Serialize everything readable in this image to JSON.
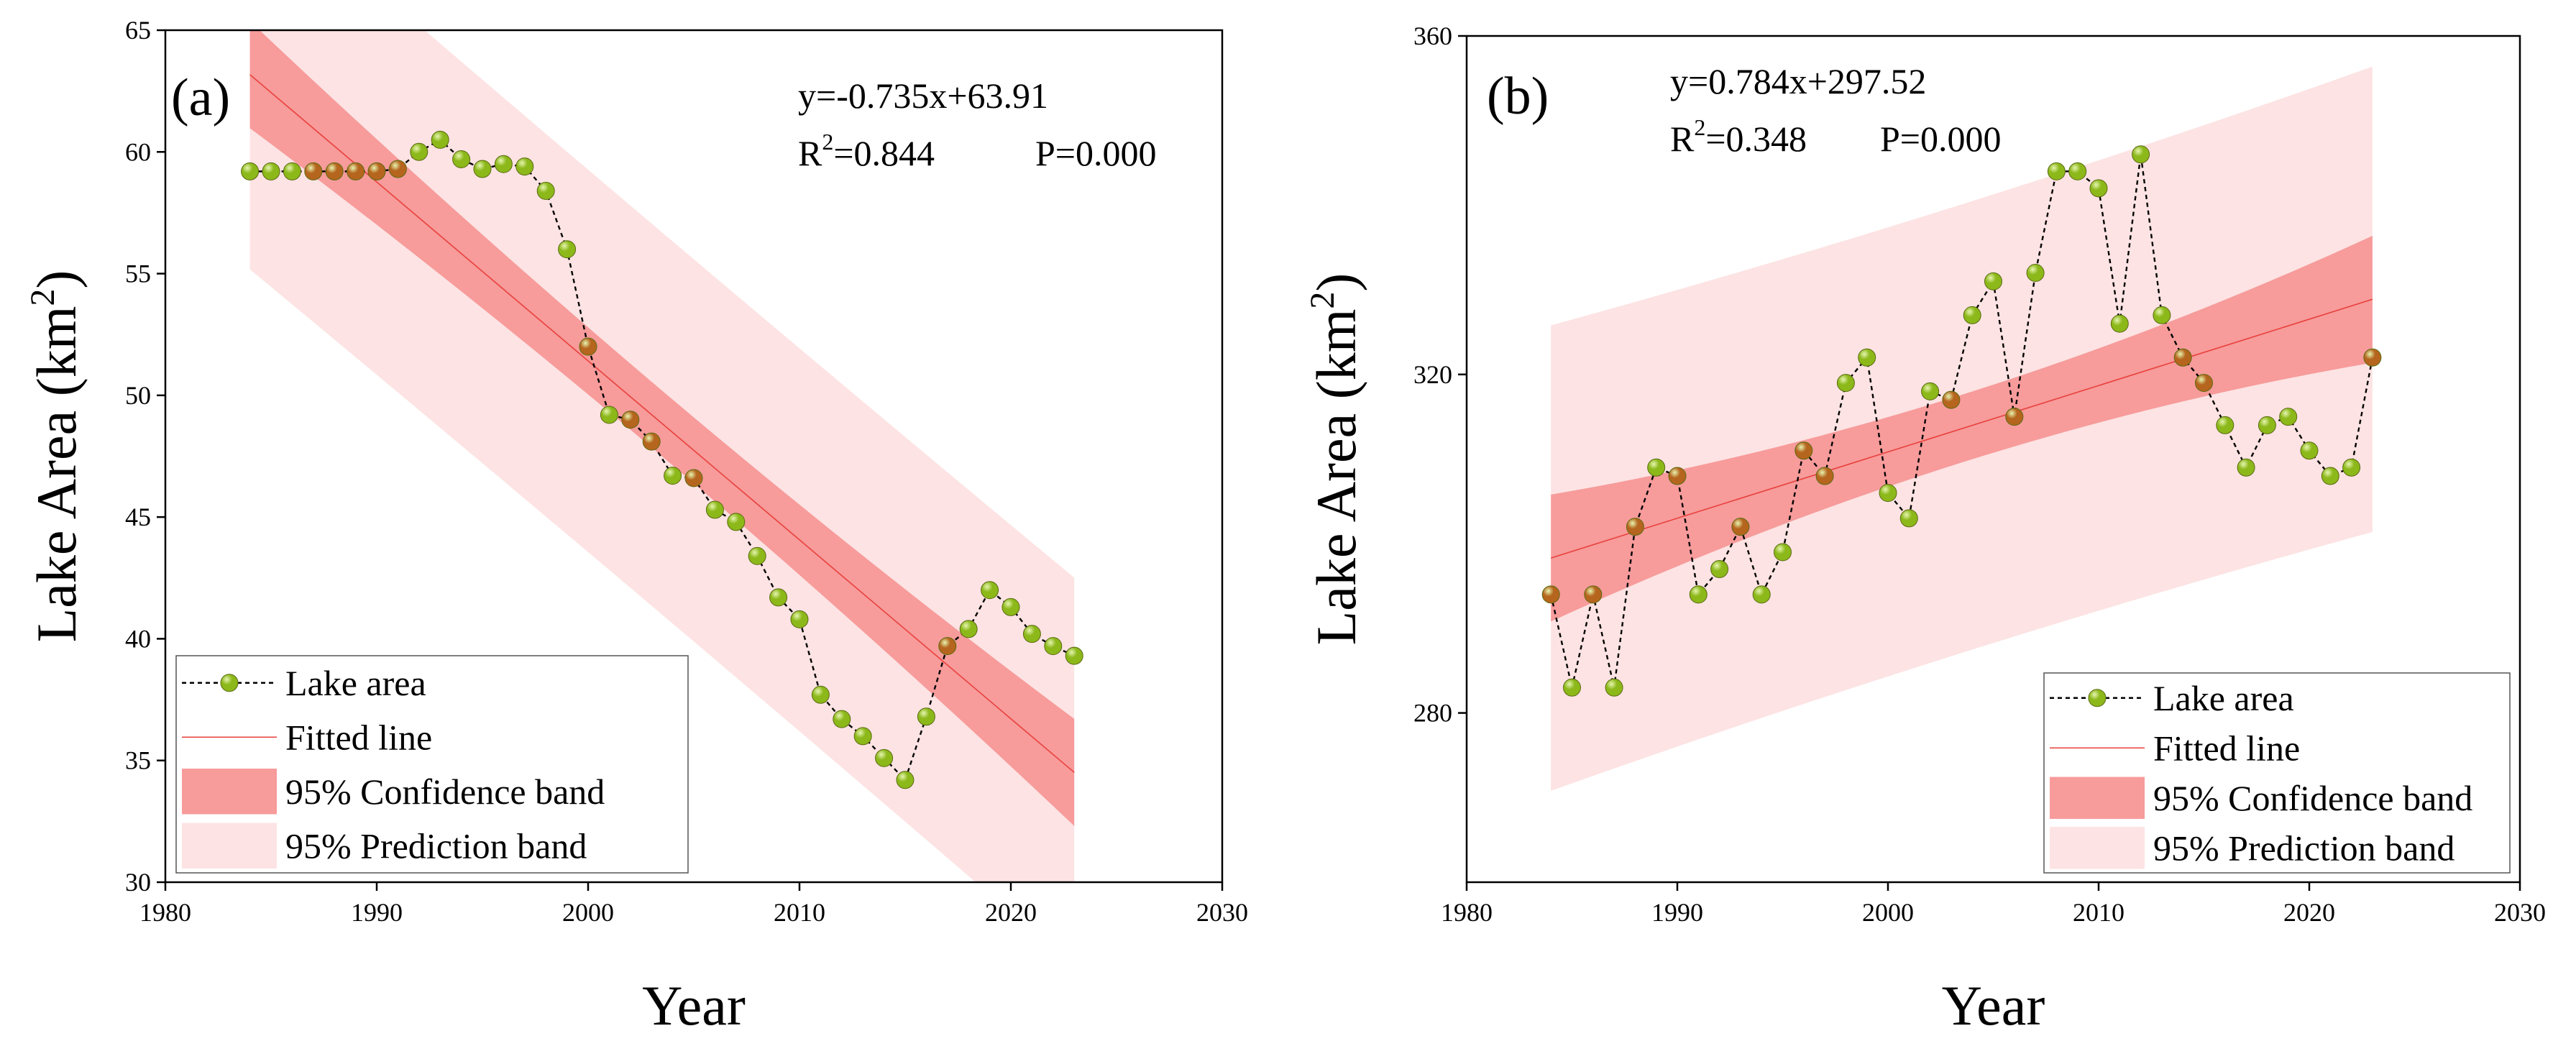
{
  "chart_data": [
    {
      "type": "scatter",
      "panel_label": "(a)",
      "xlabel": "Year",
      "ylabel": "Lake Area (km",
      "ylabel_sup": "2",
      "ylabel_close": ")",
      "xlim": [
        1980,
        2030
      ],
      "ylim": [
        30,
        65
      ],
      "xticks": [
        1980,
        1990,
        2000,
        2010,
        2020,
        2030
      ],
      "yticks": [
        30,
        35,
        40,
        45,
        50,
        55,
        60,
        65
      ],
      "equation": "y=-0.735x+63.91",
      "r2_label": "R",
      "r2_sup": "2",
      "r2_value": "=0.844",
      "p_value": "P=0.000",
      "fit": {
        "slope": -0.735,
        "intercept": 63.91,
        "x0": 1983
      },
      "ci_halfwidth": [
        2.2,
        1.35,
        2.2
      ],
      "pi_halfwidth": [
        8.0,
        7.85,
        8.0
      ],
      "x_range": [
        1984,
        2023
      ],
      "legend_position": "bottom-left",
      "legend": [
        "Lake area",
        "Fitted line",
        "95% Confidence band",
        "95% Prediction band"
      ],
      "series": [
        {
          "name": "Lake area",
          "x": [
            1984,
            1985,
            1986,
            1987,
            1988,
            1989,
            1990,
            1991,
            1992,
            1993,
            1994,
            1995,
            1996,
            1997,
            1998,
            1999,
            2000,
            2001,
            2002,
            2003,
            2004,
            2005,
            2006,
            2007,
            2008,
            2009,
            2010,
            2011,
            2012,
            2013,
            2014,
            2015,
            2016,
            2017,
            2018,
            2019,
            2020,
            2021,
            2022,
            2023
          ],
          "y": [
            59.2,
            59.2,
            59.2,
            59.2,
            59.2,
            59.2,
            59.2,
            59.3,
            60.0,
            60.5,
            59.7,
            59.3,
            59.5,
            59.4,
            58.4,
            56.0,
            52.0,
            49.2,
            49.0,
            48.1,
            46.7,
            46.6,
            45.3,
            44.8,
            43.4,
            41.7,
            40.8,
            37.7,
            36.7,
            36.0,
            35.1,
            34.2,
            36.8,
            39.7,
            40.4,
            42.0,
            41.3,
            40.2,
            39.7,
            39.3
          ]
        }
      ]
    },
    {
      "type": "scatter",
      "panel_label": "(b)",
      "xlabel": "Year",
      "ylabel": "Lake Area (km",
      "ylabel_sup": "2",
      "ylabel_close": ")",
      "xlim": [
        1980,
        2030
      ],
      "ylim": [
        260,
        360
      ],
      "xticks": [
        1980,
        1990,
        2000,
        2010,
        2020,
        2030
      ],
      "yticks": [
        280,
        320,
        360
      ],
      "equation": "y=0.784x+297.52",
      "r2_label": "R",
      "r2_sup": "2",
      "r2_value": "=0.348",
      "p_value": "P=0.000",
      "fit": {
        "slope": 0.784,
        "intercept": 297.52,
        "x0": 1983
      },
      "ci_halfwidth": [
        7.5,
        4.0,
        9.0
      ],
      "pi_halfwidth": [
        27.5,
        26.5,
        27.5
      ],
      "x_range": [
        1984,
        2023
      ],
      "legend_position": "bottom-right",
      "legend": [
        "Lake area",
        "Fitted line",
        "95% Confidence band",
        "95% Prediction band"
      ],
      "series": [
        {
          "name": "Lake area",
          "x": [
            1984,
            1985,
            1986,
            1987,
            1988,
            1989,
            1990,
            1991,
            1992,
            1993,
            1994,
            1995,
            1996,
            1997,
            1998,
            1999,
            2000,
            2001,
            2002,
            2003,
            2004,
            2005,
            2006,
            2007,
            2008,
            2009,
            2010,
            2011,
            2012,
            2013,
            2014,
            2015,
            2016,
            2017,
            2018,
            2019,
            2020,
            2021,
            2022,
            2023
          ],
          "y": [
            294,
            283,
            294,
            283,
            302,
            309,
            308,
            294,
            297,
            302,
            294,
            299,
            311,
            308,
            319,
            322,
            306,
            303,
            318,
            317,
            327,
            331,
            315,
            332,
            344,
            344,
            342,
            326,
            346,
            327,
            322,
            319,
            314,
            309,
            314,
            315,
            311,
            308,
            309,
            322
          ]
        }
      ]
    }
  ],
  "colors": {
    "marker_fill": "#8cb81a",
    "marker_fill_inside_band": "#b5651d",
    "marker_highlight": "#e6f5b0",
    "fit_line": "#e8413c",
    "ci_band": "#f79b9b",
    "pi_band": "#fde3e3",
    "axis": "#000000"
  }
}
